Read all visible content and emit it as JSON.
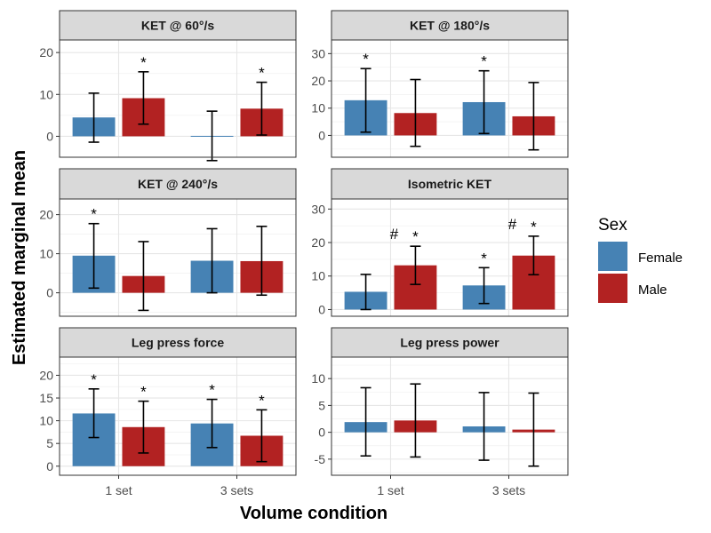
{
  "chart_data": {
    "type": "bar",
    "layout": "faceted 3x2 grouped bar chart with error bars",
    "ylabel": "Estimated marginal mean",
    "xlabel": "Volume condition",
    "categories": [
      "1 set",
      "3 sets"
    ],
    "legend": {
      "title": "Sex",
      "placement": "right",
      "entries": [
        {
          "name": "Female",
          "color": "#4682b4"
        },
        {
          "name": "Male",
          "color": "#b22222"
        }
      ]
    },
    "grid": true,
    "error_bars": true,
    "panels": [
      {
        "title": "KET @ 60°/s",
        "ylim": [
          -5,
          23
        ],
        "yticks": [
          0,
          10,
          20
        ],
        "series": [
          {
            "name": "Female",
            "values": [
              4.5,
              0.1
            ],
            "lower": [
              -1.4,
              -5.8
            ],
            "upper": [
              10.3,
              6.0
            ],
            "annotations": [
              "",
              ""
            ]
          },
          {
            "name": "Male",
            "values": [
              9.1,
              6.6
            ],
            "lower": [
              2.9,
              0.3
            ],
            "upper": [
              15.4,
              12.9
            ],
            "annotations": [
              "*",
              "*"
            ]
          }
        ]
      },
      {
        "title": "KET @ 180°/s",
        "ylim": [
          -8,
          35
        ],
        "yticks": [
          0,
          10,
          20,
          30
        ],
        "series": [
          {
            "name": "Female",
            "values": [
              12.9,
              12.2
            ],
            "lower": [
              1.2,
              0.7
            ],
            "upper": [
              24.5,
              23.7
            ],
            "annotations": [
              "*",
              "*"
            ]
          },
          {
            "name": "Male",
            "values": [
              8.2,
              7.0
            ],
            "lower": [
              -4.0,
              -5.3
            ],
            "upper": [
              20.5,
              19.4
            ],
            "annotations": [
              "",
              ""
            ]
          }
        ]
      },
      {
        "title": "KET @ 240°/s",
        "ylim": [
          -6,
          24
        ],
        "yticks": [
          0,
          10,
          20
        ],
        "series": [
          {
            "name": "Female",
            "values": [
              9.5,
              8.2
            ],
            "lower": [
              1.2,
              0.0
            ],
            "upper": [
              17.7,
              16.4
            ],
            "annotations": [
              "*",
              ""
            ]
          },
          {
            "name": "Male",
            "values": [
              4.3,
              8.1
            ],
            "lower": [
              -4.5,
              -0.6
            ],
            "upper": [
              13.1,
              17.0
            ],
            "annotations": [
              "",
              ""
            ]
          }
        ]
      },
      {
        "title": "Isometric KET",
        "ylim": [
          -2,
          33
        ],
        "yticks": [
          0,
          10,
          20,
          30
        ],
        "series": [
          {
            "name": "Female",
            "values": [
              5.3,
              7.2
            ],
            "lower": [
              0.0,
              1.8
            ],
            "upper": [
              10.5,
              12.5
            ],
            "annotations": [
              "",
              "*"
            ]
          },
          {
            "name": "Male",
            "values": [
              13.2,
              16.1
            ],
            "lower": [
              7.5,
              10.4
            ],
            "upper": [
              18.9,
              21.9
            ],
            "annotations": [
              "# *",
              "# *"
            ]
          }
        ]
      },
      {
        "title": "Leg press force",
        "ylim": [
          -2,
          24
        ],
        "yticks": [
          0,
          5,
          10,
          15,
          20
        ],
        "series": [
          {
            "name": "Female",
            "values": [
              11.6,
              9.4
            ],
            "lower": [
              6.3,
              4.1
            ],
            "upper": [
              17.0,
              14.7
            ],
            "annotations": [
              "*",
              "*"
            ]
          },
          {
            "name": "Male",
            "values": [
              8.6,
              6.7
            ],
            "lower": [
              2.9,
              1.0
            ],
            "upper": [
              14.3,
              12.4
            ],
            "annotations": [
              "*",
              "*"
            ]
          }
        ]
      },
      {
        "title": "Leg press power",
        "ylim": [
          -8,
          14
        ],
        "yticks": [
          -5,
          0,
          5,
          10
        ],
        "series": [
          {
            "name": "Female",
            "values": [
              1.9,
              1.1
            ],
            "lower": [
              -4.4,
              -5.2
            ],
            "upper": [
              8.3,
              7.4
            ],
            "annotations": [
              "",
              ""
            ]
          },
          {
            "name": "Male",
            "values": [
              2.2,
              0.5
            ],
            "lower": [
              -4.6,
              -6.3
            ],
            "upper": [
              9.0,
              7.3
            ],
            "annotations": [
              "",
              ""
            ]
          }
        ]
      }
    ]
  }
}
